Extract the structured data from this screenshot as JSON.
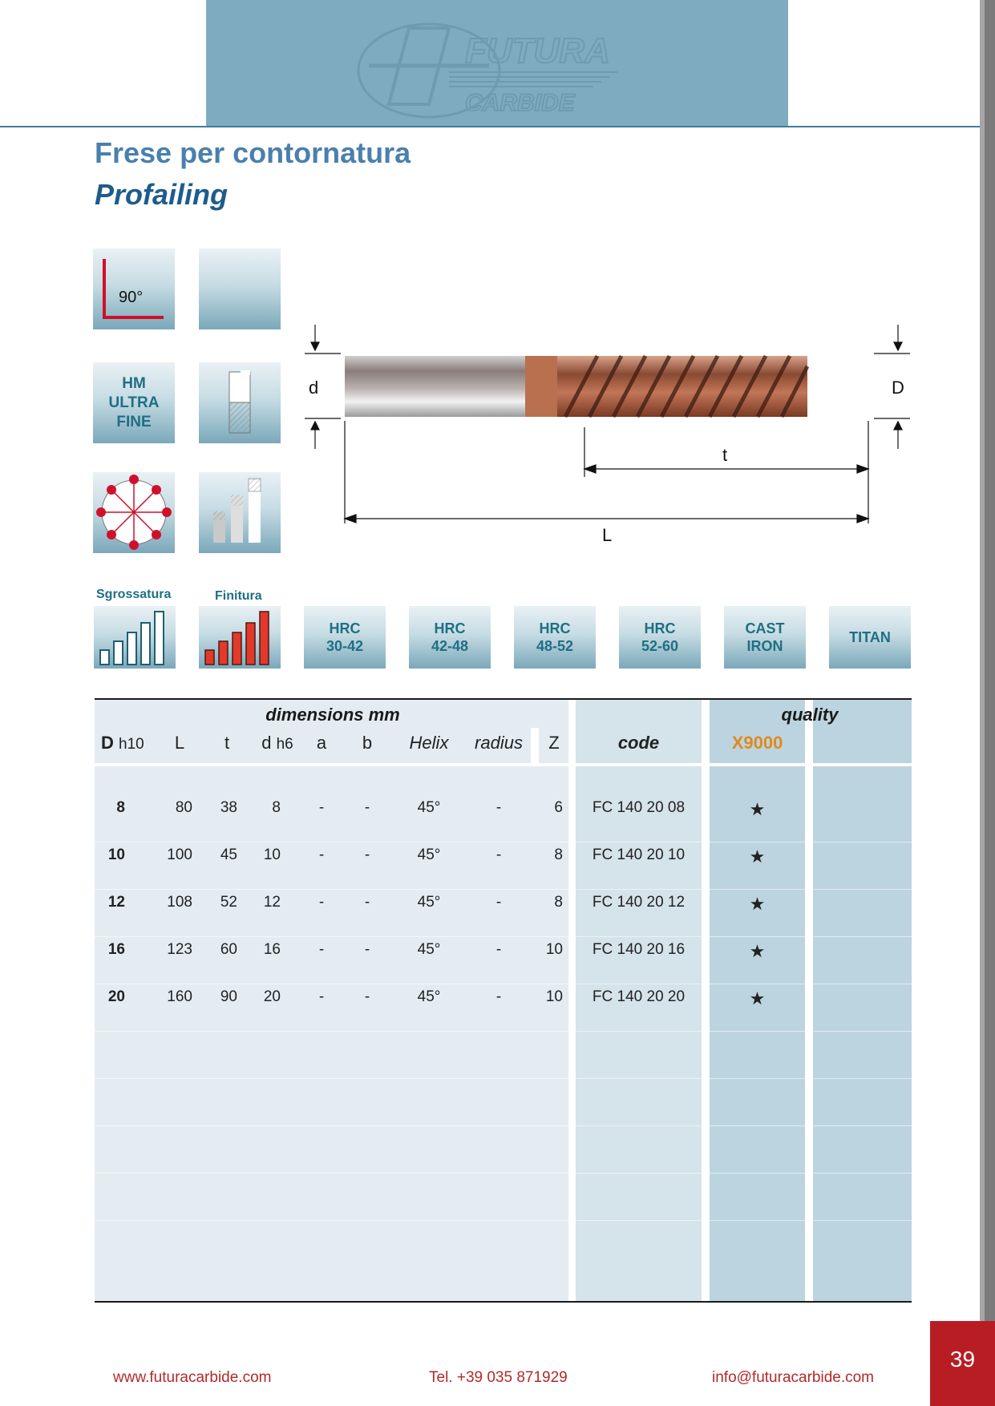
{
  "header": {
    "logo_line1": "FUTURA",
    "logo_line2": "CARBIDE",
    "title": "Frese per contornatura",
    "subtitle": "Profailing"
  },
  "icons": {
    "angle_label": "90°",
    "material_tile": "HM\nULTRA\nFINE"
  },
  "drawing": {
    "label_d": "d",
    "label_D": "D",
    "label_t": "t",
    "label_L": "L"
  },
  "materials": {
    "roughing_label": "Sgrossatura",
    "finishing_label": "Finitura",
    "tiles": [
      "HRC\n30-42",
      "HRC\n42-48",
      "HRC\n48-52",
      "HRC\n52-60",
      "CAST\nIRON",
      "TITAN"
    ]
  },
  "table": {
    "group_dimensions": "dimensions mm",
    "group_quality": "quality",
    "headers": {
      "D": "D",
      "D_sub": "h10",
      "L": "L",
      "t": "t",
      "d": "d",
      "d_sub": "h6",
      "a": "a",
      "b": "b",
      "helix": "Helix",
      "radius": "radius",
      "Z": "Z",
      "code": "code",
      "quality": "X9000"
    },
    "rows": [
      {
        "D": "8",
        "L": "80",
        "t": "38",
        "d": "8",
        "a": "-",
        "b": "-",
        "helix": "45°",
        "radius": "-",
        "Z": "6",
        "code": "FC 140 20 08",
        "quality": "★"
      },
      {
        "D": "10",
        "L": "100",
        "t": "45",
        "d": "10",
        "a": "-",
        "b": "-",
        "helix": "45°",
        "radius": "-",
        "Z": "8",
        "code": "FC 140 20 10",
        "quality": "★"
      },
      {
        "D": "12",
        "L": "108",
        "t": "52",
        "d": "12",
        "a": "-",
        "b": "-",
        "helix": "45°",
        "radius": "-",
        "Z": "8",
        "code": "FC 140 20 12",
        "quality": "★"
      },
      {
        "D": "16",
        "L": "123",
        "t": "60",
        "d": "16",
        "a": "-",
        "b": "-",
        "helix": "45°",
        "radius": "-",
        "Z": "10",
        "code": "FC 140 20 16",
        "quality": "★"
      },
      {
        "D": "20",
        "L": "160",
        "t": "90",
        "d": "20",
        "a": "-",
        "b": "-",
        "helix": "45°",
        "radius": "-",
        "Z": "10",
        "code": "FC 140 20 20",
        "quality": "★"
      }
    ]
  },
  "footer": {
    "website": "www.futuracarbide.com",
    "phone": "Tel. +39 035 871929",
    "email": "info@futuracarbide.com",
    "page_number": "39"
  },
  "colors": {
    "header_band": "#7eabbf",
    "title_blue": "#4a7fae",
    "subtitle_blue": "#1d5c8c",
    "quality_orange": "#e08a1e",
    "footer_red": "#b22a2a",
    "page_box_red": "#b71d22"
  }
}
